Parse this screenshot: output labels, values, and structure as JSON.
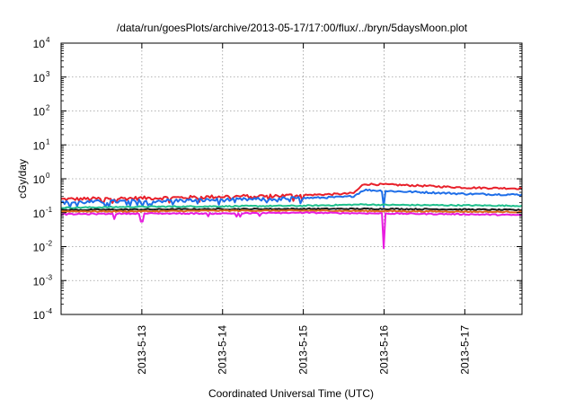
{
  "chart_data": {
    "type": "line",
    "title": "/data/run/goesPlots/archive/2013-05-17/17:00/flux/../bryn/5daysMoon.plot",
    "xlabel": "Coordinated Universal Time (UTC)",
    "ylabel": "cGy/day",
    "yscale": "log",
    "ylim": [
      0.0001,
      10000
    ],
    "xlim": [
      "2013-05-12 00:00",
      "2013-05-17 17:00"
    ],
    "x_ticks": [
      "2013-5-13",
      "2013-5-14",
      "2013-5-15",
      "2013-5-16",
      "2013-5-17"
    ],
    "y_ticks": [
      {
        "base": "10",
        "exp": "-4"
      },
      {
        "base": "10",
        "exp": "-3"
      },
      {
        "base": "10",
        "exp": "-2"
      },
      {
        "base": "10",
        "exp": "-1"
      },
      {
        "base": "10",
        "exp": "0"
      },
      {
        "base": "10",
        "exp": "1"
      },
      {
        "base": "10",
        "exp": "2"
      },
      {
        "base": "10",
        "exp": "3"
      },
      {
        "base": "10",
        "exp": "4"
      }
    ],
    "grid": true,
    "series": [
      {
        "color": "#e8202a",
        "x": [
          "2013-05-12 00:00",
          "2013-05-12 12:00",
          "2013-05-13 00:00",
          "2013-05-13 12:00",
          "2013-05-14 00:00",
          "2013-05-14 12:00",
          "2013-05-15 00:00",
          "2013-05-15 12:00",
          "2013-05-15 15:00",
          "2013-05-15 18:00",
          "2013-05-16 00:00",
          "2013-05-16 12:00",
          "2013-05-17 00:00",
          "2013-05-17 17:00"
        ],
        "values": [
          0.25,
          0.26,
          0.27,
          0.28,
          0.3,
          0.31,
          0.33,
          0.36,
          0.38,
          0.7,
          0.68,
          0.62,
          0.55,
          0.52
        ]
      },
      {
        "color": "#1e6ee8",
        "x": [
          "2013-05-12 00:00",
          "2013-05-12 12:00",
          "2013-05-13 00:00",
          "2013-05-13 12:00",
          "2013-05-14 00:00",
          "2013-05-14 12:00",
          "2013-05-15 00:00",
          "2013-05-15 12:00",
          "2013-05-15 15:00",
          "2013-05-15 18:00",
          "2013-05-16 00:00",
          "2013-05-16 12:00",
          "2013-05-17 00:00",
          "2013-05-17 17:00"
        ],
        "values": [
          0.2,
          0.21,
          0.22,
          0.23,
          0.24,
          0.25,
          0.27,
          0.29,
          0.31,
          0.47,
          0.44,
          0.4,
          0.36,
          0.34
        ]
      },
      {
        "color": "#1fbf8c",
        "x": [
          "2013-05-12 00:00",
          "2013-05-13 00:00",
          "2013-05-14 00:00",
          "2013-05-15 00:00",
          "2013-05-15 18:00",
          "2013-05-16 00:00",
          "2013-05-17 00:00",
          "2013-05-17 17:00"
        ],
        "values": [
          0.14,
          0.15,
          0.155,
          0.16,
          0.175,
          0.17,
          0.165,
          0.16
        ]
      },
      {
        "color": "#1a1a1a",
        "x": [
          "2013-05-12 00:00",
          "2013-05-13 00:00",
          "2013-05-14 00:00",
          "2013-05-15 00:00",
          "2013-05-16 00:00",
          "2013-05-17 00:00",
          "2013-05-17 17:00"
        ],
        "values": [
          0.12,
          0.125,
          0.128,
          0.13,
          0.13,
          0.125,
          0.12
        ]
      },
      {
        "color": "#e06b1a",
        "x": [
          "2013-05-12 00:00",
          "2013-05-13 00:00",
          "2013-05-14 00:00",
          "2013-05-15 00:00",
          "2013-05-16 00:00",
          "2013-05-17 00:00",
          "2013-05-17 17:00"
        ],
        "values": [
          0.11,
          0.11,
          0.115,
          0.115,
          0.112,
          0.108,
          0.105
        ]
      },
      {
        "color": "#e81ce0",
        "x": [
          "2013-05-12 00:00",
          "2013-05-13 00:00",
          "2013-05-14 00:00",
          "2013-05-15 00:00",
          "2013-05-16 00:00",
          "2013-05-17 00:00",
          "2013-05-17 17:00"
        ],
        "values": [
          0.09,
          0.095,
          0.095,
          0.1,
          0.095,
          0.09,
          0.085
        ]
      }
    ],
    "dips": [
      {
        "series": 5,
        "x": "2013-05-16 00:00",
        "value": 0.009
      },
      {
        "series": 5,
        "x": "2013-05-13 00:00",
        "value": 0.055
      },
      {
        "series": 5,
        "x": "2013-05-12 16:00",
        "value": 0.065
      },
      {
        "series": 1,
        "x": "2013-05-16 00:00",
        "value": 0.15
      }
    ]
  }
}
